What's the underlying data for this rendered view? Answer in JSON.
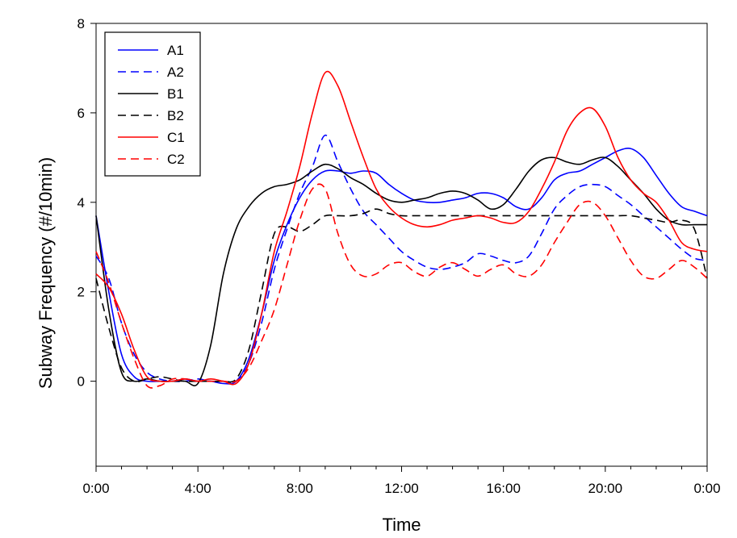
{
  "chart_data": {
    "type": "line",
    "title": "",
    "xlabel": "Time",
    "ylabel": "Subway Frequency (#/10min)",
    "xlim": [
      0,
      24
    ],
    "ylim": [
      -1.9,
      8
    ],
    "x_ticks": [
      0,
      4,
      8,
      12,
      16,
      20,
      24
    ],
    "x_tick_labels": [
      "0:00",
      "4:00",
      "8:00",
      "12:00",
      "16:00",
      "20:00",
      "0:00"
    ],
    "y_ticks": [
      0,
      2,
      4,
      6,
      8
    ],
    "y_tick_labels": [
      "0",
      "2",
      "4",
      "6",
      "8"
    ],
    "legend_position": "top-left",
    "series": [
      {
        "name": "A1",
        "color": "#0000ff",
        "dash": "solid",
        "x": [
          0,
          0.5,
          1,
          1.5,
          2,
          2.5,
          3,
          3.5,
          4,
          4.5,
          5,
          5.5,
          6,
          6.5,
          7,
          7.5,
          8,
          8.5,
          9,
          9.5,
          10,
          10.5,
          11,
          11.5,
          12,
          12.5,
          13,
          13.5,
          14,
          14.5,
          15,
          15.5,
          16,
          16.5,
          17,
          17.5,
          18,
          18.5,
          19,
          19.5,
          20,
          20.5,
          21,
          21.5,
          22,
          22.5,
          23,
          23.5,
          24
        ],
        "y": [
          3.7,
          2.0,
          0.6,
          0.1,
          0.0,
          0.0,
          0.0,
          0.05,
          0.0,
          0.0,
          -0.05,
          0.0,
          0.5,
          1.5,
          2.7,
          3.5,
          4.1,
          4.5,
          4.7,
          4.7,
          4.65,
          4.7,
          4.65,
          4.4,
          4.2,
          4.05,
          4.0,
          4.0,
          4.05,
          4.1,
          4.2,
          4.2,
          4.1,
          3.9,
          3.85,
          4.1,
          4.5,
          4.65,
          4.7,
          4.85,
          5.0,
          5.15,
          5.2,
          5.0,
          4.6,
          4.2,
          3.9,
          3.8,
          3.7
        ]
      },
      {
        "name": "A2",
        "color": "#0000ff",
        "dash": "dashed",
        "x": [
          0,
          0.5,
          1,
          1.5,
          2,
          2.5,
          3,
          3.5,
          4,
          4.5,
          5,
          5.5,
          6,
          6.5,
          7,
          7.5,
          8,
          8.5,
          9,
          9.5,
          10,
          10.5,
          11,
          11.5,
          12,
          12.5,
          13,
          13.5,
          14,
          14.5,
          15,
          15.5,
          16,
          16.5,
          17,
          17.5,
          18,
          18.5,
          19,
          19.5,
          20,
          20.5,
          21,
          21.5,
          22,
          22.5,
          23,
          23.5,
          24
        ],
        "y": [
          2.8,
          2.3,
          1.3,
          0.6,
          0.2,
          0.05,
          0.0,
          0.0,
          0.05,
          0.0,
          0.0,
          0.0,
          0.4,
          1.3,
          2.5,
          3.4,
          4.2,
          4.8,
          5.5,
          4.9,
          4.3,
          3.8,
          3.5,
          3.2,
          2.9,
          2.7,
          2.55,
          2.5,
          2.55,
          2.65,
          2.85,
          2.8,
          2.7,
          2.65,
          2.8,
          3.3,
          3.85,
          4.15,
          4.35,
          4.4,
          4.35,
          4.15,
          3.95,
          3.7,
          3.45,
          3.2,
          2.95,
          2.75,
          2.7
        ]
      },
      {
        "name": "B1",
        "color": "#000000",
        "dash": "solid",
        "x": [
          0,
          0.5,
          1,
          1.5,
          2,
          2.5,
          3,
          3.5,
          4,
          4.5,
          5,
          5.5,
          6,
          6.5,
          7,
          7.5,
          8,
          8.5,
          9,
          9.5,
          10,
          10.5,
          11,
          11.5,
          12,
          12.5,
          13,
          13.5,
          14,
          14.5,
          15,
          15.5,
          16,
          16.5,
          17,
          17.5,
          18,
          18.5,
          19,
          19.5,
          20,
          20.5,
          21,
          21.5,
          22,
          22.5,
          23,
          23.5,
          24
        ],
        "y": [
          3.7,
          1.6,
          0.2,
          0.0,
          0.05,
          0.0,
          0.0,
          0.0,
          -0.05,
          0.8,
          2.4,
          3.4,
          3.9,
          4.2,
          4.35,
          4.4,
          4.5,
          4.7,
          4.85,
          4.75,
          4.55,
          4.4,
          4.2,
          4.05,
          4.0,
          4.05,
          4.1,
          4.2,
          4.25,
          4.2,
          4.05,
          3.85,
          3.95,
          4.3,
          4.7,
          4.95,
          5.0,
          4.9,
          4.85,
          4.95,
          5.0,
          4.8,
          4.5,
          4.2,
          3.85,
          3.6,
          3.5,
          3.5,
          3.5
        ]
      },
      {
        "name": "B2",
        "color": "#000000",
        "dash": "dashed",
        "x": [
          0,
          0.5,
          1,
          1.5,
          2,
          2.5,
          3,
          3.5,
          4,
          4.5,
          5,
          5.5,
          6,
          6.5,
          7,
          7.5,
          8,
          8.5,
          9,
          9.5,
          10,
          10.5,
          11,
          11.5,
          12,
          12.5,
          13,
          13.5,
          14,
          14.5,
          15,
          15.5,
          16,
          16.5,
          17,
          17.5,
          18,
          18.5,
          19,
          19.5,
          20,
          20.5,
          21,
          21.5,
          22,
          22.5,
          23,
          23.5,
          24
        ],
        "y": [
          2.3,
          1.2,
          0.3,
          0.0,
          0.05,
          0.1,
          0.05,
          0.0,
          0.0,
          0.0,
          0.0,
          0.05,
          0.7,
          2.0,
          3.3,
          3.45,
          3.35,
          3.5,
          3.7,
          3.7,
          3.7,
          3.75,
          3.85,
          3.75,
          3.7,
          3.7,
          3.7,
          3.7,
          3.7,
          3.7,
          3.7,
          3.7,
          3.7,
          3.7,
          3.7,
          3.7,
          3.7,
          3.7,
          3.7,
          3.7,
          3.7,
          3.7,
          3.7,
          3.65,
          3.6,
          3.55,
          3.6,
          3.4,
          2.3
        ]
      },
      {
        "name": "C1",
        "color": "#ff0000",
        "dash": "solid",
        "x": [
          0,
          0.5,
          1,
          1.5,
          2,
          2.5,
          3,
          3.5,
          4,
          4.5,
          5,
          5.5,
          6,
          6.5,
          7,
          7.5,
          8,
          8.5,
          9,
          9.5,
          10,
          10.5,
          11,
          11.5,
          12,
          12.5,
          13,
          13.5,
          14,
          14.5,
          15,
          15.5,
          16,
          16.5,
          17,
          17.5,
          18,
          18.5,
          19,
          19.5,
          20,
          20.5,
          21,
          21.5,
          22,
          22.5,
          23,
          23.5,
          24
        ],
        "y": [
          2.4,
          2.1,
          1.5,
          0.7,
          0.1,
          0.0,
          0.0,
          0.05,
          0.0,
          0.05,
          0.0,
          -0.05,
          0.4,
          1.5,
          2.9,
          3.8,
          4.8,
          6.0,
          6.9,
          6.6,
          5.8,
          5.0,
          4.3,
          3.9,
          3.65,
          3.5,
          3.45,
          3.5,
          3.6,
          3.65,
          3.7,
          3.65,
          3.55,
          3.55,
          3.8,
          4.3,
          4.9,
          5.6,
          6.0,
          6.1,
          5.7,
          5.0,
          4.5,
          4.2,
          4.0,
          3.6,
          3.1,
          2.95,
          2.9
        ]
      },
      {
        "name": "C2",
        "color": "#ff0000",
        "dash": "dashed",
        "x": [
          0,
          0.5,
          1,
          1.5,
          2,
          2.5,
          3,
          3.5,
          4,
          4.5,
          5,
          5.5,
          6,
          6.5,
          7,
          7.5,
          8,
          8.5,
          9,
          9.5,
          10,
          10.5,
          11,
          11.5,
          12,
          12.5,
          13,
          13.5,
          14,
          14.5,
          15,
          15.5,
          16,
          16.5,
          17,
          17.5,
          18,
          18.5,
          19,
          19.5,
          20,
          20.5,
          21,
          21.5,
          22,
          22.5,
          23,
          23.5,
          24
        ],
        "y": [
          2.9,
          2.2,
          1.3,
          0.5,
          -0.1,
          -0.1,
          0.05,
          0.05,
          0.0,
          0.0,
          0.0,
          0.0,
          0.3,
          0.9,
          1.6,
          2.6,
          3.6,
          4.3,
          4.3,
          3.3,
          2.6,
          2.35,
          2.4,
          2.6,
          2.65,
          2.45,
          2.35,
          2.55,
          2.65,
          2.5,
          2.35,
          2.5,
          2.6,
          2.4,
          2.35,
          2.6,
          3.1,
          3.55,
          3.95,
          4.0,
          3.7,
          3.2,
          2.7,
          2.35,
          2.3,
          2.5,
          2.7,
          2.55,
          2.3
        ]
      }
    ]
  }
}
